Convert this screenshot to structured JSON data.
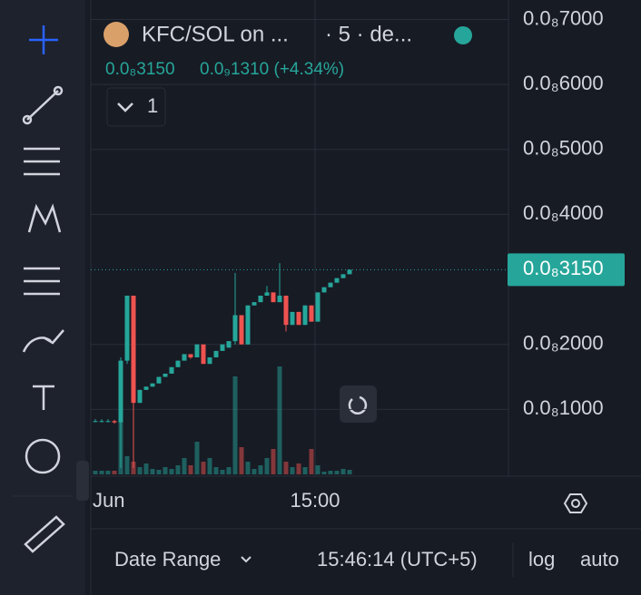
{
  "header": {
    "symbol": "KFC/SOL on ...",
    "interval": "· 5 · de...",
    "price": "0.0₈3150",
    "change": "0.0₉1310 (+4.34%)",
    "indicators_count": "1"
  },
  "chart_data": {
    "type": "candlestick",
    "open": [
      8.2e-10,
      8.2e-10,
      8.2e-10,
      8.2e-10,
      8e-10,
      1.75e-09,
      2.75e-09,
      1.1e-09,
      1.3e-09,
      1.35e-09,
      1.4e-09,
      1.5e-09,
      1.55e-09,
      1.65e-09,
      1.75e-09,
      1.85e-09,
      1.8e-09,
      2e-09,
      1.7e-09,
      1.8e-09,
      1.9e-09,
      1.95e-09,
      2.05e-09,
      2.45e-09,
      2e-09,
      2.6e-09,
      2.65e-09,
      2.75e-09,
      2.8e-09,
      2.65e-09,
      2.75e-09,
      2.3e-09,
      2.5e-09,
      2.3e-09,
      2.6e-09,
      2.35e-09,
      2.8e-09,
      2.88e-09,
      2.95e-09,
      3.02e-09,
      3.08e-09
    ],
    "high": [
      8.5e-10,
      8.5e-10,
      8.5e-10,
      8.4e-10,
      1.8e-09,
      2.75e-09,
      2.75e-09,
      1.3e-09,
      1.35e-09,
      1.4e-09,
      1.5e-09,
      1.55e-09,
      1.65e-09,
      1.75e-09,
      1.85e-09,
      1.85e-09,
      2e-09,
      2e-09,
      1.8e-09,
      1.9e-09,
      2e-09,
      2.05e-09,
      3.1e-09,
      2.45e-09,
      2.6e-09,
      2.65e-09,
      2.75e-09,
      2.9e-09,
      2.8e-09,
      3.25e-09,
      2.75e-09,
      2.5e-09,
      2.5e-09,
      2.6e-09,
      2.6e-09,
      2.8e-09,
      2.88e-09,
      2.95e-09,
      3.02e-09,
      3.08e-09,
      3.15e-09
    ],
    "low": [
      8e-10,
      8e-10,
      8e-10,
      7.8e-10,
      1e-10,
      1.7e-09,
      1e-10,
      1.1e-09,
      1.3e-09,
      1.35e-09,
      1.4e-09,
      1.5e-09,
      1.55e-09,
      1.65e-09,
      1.75e-09,
      1.78e-09,
      1.8e-09,
      1.7e-09,
      1.7e-09,
      1.8e-09,
      1.9e-09,
      1.95e-09,
      2e-09,
      2e-09,
      2e-09,
      2.6e-09,
      2.65e-09,
      2.75e-09,
      2.65e-09,
      2.65e-09,
      2.2e-09,
      2.3e-09,
      2.3e-09,
      2.3e-09,
      2.35e-09,
      2.35e-09,
      2.8e-09,
      2.88e-09,
      2.95e-09,
      3.02e-09,
      3.08e-09
    ],
    "close": [
      8.2e-10,
      8.2e-10,
      8.2e-10,
      8e-10,
      1.75e-09,
      2.75e-09,
      1.1e-09,
      1.3e-09,
      1.35e-09,
      1.4e-09,
      1.5e-09,
      1.55e-09,
      1.65e-09,
      1.75e-09,
      1.85e-09,
      1.8e-09,
      2e-09,
      1.7e-09,
      1.8e-09,
      1.9e-09,
      2e-09,
      2.05e-09,
      2.45e-09,
      2e-09,
      2.6e-09,
      2.65e-09,
      2.75e-09,
      2.8e-09,
      2.65e-09,
      2.75e-09,
      2.3e-09,
      2.5e-09,
      2.3e-09,
      2.6e-09,
      2.35e-09,
      2.8e-09,
      2.88e-09,
      2.95e-09,
      3.02e-09,
      3.08e-09,
      3.15e-09
    ],
    "volume": [
      4,
      4,
      4,
      4,
      60,
      20,
      14,
      8,
      12,
      6,
      5,
      8,
      6,
      10,
      18,
      10,
      36,
      14,
      18,
      8,
      5,
      8,
      108,
      30,
      14,
      6,
      10,
      18,
      28,
      119,
      14,
      8,
      12,
      8,
      28,
      10,
      3,
      4,
      4,
      6,
      5
    ],
    "up_color": "#26a69a",
    "down_color": "#ef5350",
    "ylim": [
      0,
      7.3e-09
    ],
    "yticks": [
      {
        "value": 1e-09,
        "label": "0.0₈1000"
      },
      {
        "value": 2e-09,
        "label": "0.0₈2000"
      },
      {
        "value": 4e-09,
        "label": "0.0₈4000"
      },
      {
        "value": 5e-09,
        "label": "0.0₈5000"
      },
      {
        "value": 6e-09,
        "label": "0.0₈6000"
      },
      {
        "value": 7e-09,
        "label": "0.0₈7000"
      }
    ],
    "last_price": {
      "value": 3.15e-09,
      "label": "0.0₈3150"
    },
    "x_labels": [
      "Jun",
      "15:00"
    ],
    "grid": true
  },
  "footer": {
    "date_range": "Date Range",
    "clock": "15:46:14 (UTC+5)",
    "log": "log",
    "auto": "auto"
  }
}
